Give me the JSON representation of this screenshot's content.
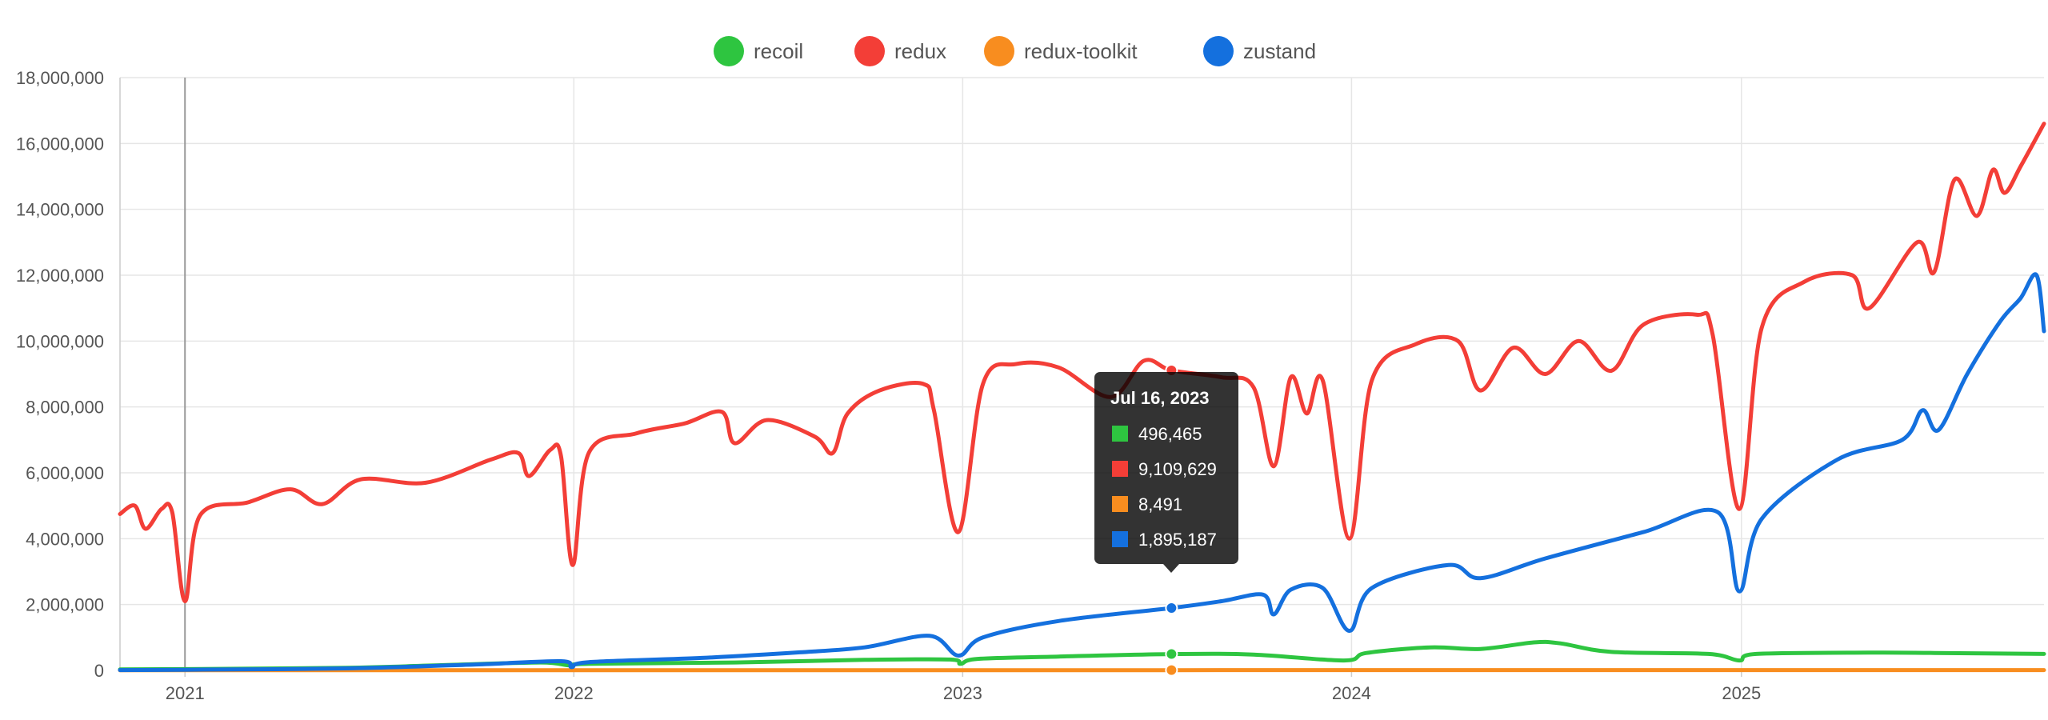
{
  "chart_data": {
    "type": "line",
    "title": "",
    "xlabel": "",
    "ylabel": "",
    "ylim": [
      0,
      18000000
    ],
    "y_ticks": [
      0,
      2000000,
      4000000,
      6000000,
      8000000,
      10000000,
      12000000,
      14000000,
      16000000,
      18000000
    ],
    "y_tick_labels": [
      "0",
      "2,000,000",
      "4,000,000",
      "6,000,000",
      "8,000,000",
      "10,000,000",
      "12,000,000",
      "14,000,000",
      "16,000,000",
      "18,000,000"
    ],
    "xlim": [
      "2020-11-01",
      "2025-10-12"
    ],
    "x_ticks": [
      "2021-01-01",
      "2022-01-01",
      "2023-01-01",
      "2024-01-01",
      "2025-01-01"
    ],
    "x_tick_labels": [
      "2021",
      "2022",
      "2023",
      "2024",
      "2025"
    ],
    "grid": true,
    "legend": "top-center",
    "series": [
      {
        "name": "recoil",
        "color": "#2ec540",
        "points": [
          [
            "2020-11-01",
            30000
          ],
          [
            "2021-01-01",
            40000
          ],
          [
            "2021-06-01",
            80000
          ],
          [
            "2021-09-01",
            160000
          ],
          [
            "2021-12-01",
            240000
          ],
          [
            "2021-12-28",
            150000
          ],
          [
            "2022-01-15",
            200000
          ],
          [
            "2022-06-01",
            240000
          ],
          [
            "2022-10-01",
            320000
          ],
          [
            "2022-12-20",
            330000
          ],
          [
            "2022-12-30",
            200000
          ],
          [
            "2023-01-15",
            350000
          ],
          [
            "2023-04-01",
            420000
          ],
          [
            "2023-07-16",
            496465
          ],
          [
            "2023-10-01",
            480000
          ],
          [
            "2023-12-25",
            300000
          ],
          [
            "2024-01-15",
            530000
          ],
          [
            "2024-03-15",
            700000
          ],
          [
            "2024-05-01",
            650000
          ],
          [
            "2024-06-20",
            850000
          ],
          [
            "2024-07-15",
            820000
          ],
          [
            "2024-09-01",
            560000
          ],
          [
            "2024-12-01",
            500000
          ],
          [
            "2024-12-30",
            300000
          ],
          [
            "2025-01-15",
            500000
          ],
          [
            "2025-05-01",
            540000
          ],
          [
            "2025-07-01",
            530000
          ],
          [
            "2025-10-12",
            500000
          ]
        ]
      },
      {
        "name": "redux",
        "color": "#f33e37",
        "points": [
          [
            "2020-11-01",
            4750000
          ],
          [
            "2020-11-15",
            5000000
          ],
          [
            "2020-11-25",
            4300000
          ],
          [
            "2020-12-10",
            4900000
          ],
          [
            "2020-12-20",
            4800000
          ],
          [
            "2021-01-01",
            2100000
          ],
          [
            "2021-01-15",
            4700000
          ],
          [
            "2021-03-01",
            5100000
          ],
          [
            "2021-04-10",
            5500000
          ],
          [
            "2021-05-10",
            5050000
          ],
          [
            "2021-06-15",
            5800000
          ],
          [
            "2021-08-15",
            5700000
          ],
          [
            "2021-10-15",
            6400000
          ],
          [
            "2021-11-10",
            6600000
          ],
          [
            "2021-11-20",
            5900000
          ],
          [
            "2021-12-10",
            6700000
          ],
          [
            "2021-12-20",
            6500000
          ],
          [
            "2021-12-31",
            3200000
          ],
          [
            "2022-01-15",
            6600000
          ],
          [
            "2022-03-01",
            7200000
          ],
          [
            "2022-04-15",
            7500000
          ],
          [
            "2022-05-20",
            7850000
          ],
          [
            "2022-06-01",
            6900000
          ],
          [
            "2022-07-01",
            7600000
          ],
          [
            "2022-08-15",
            7100000
          ],
          [
            "2022-09-01",
            6600000
          ],
          [
            "2022-09-15",
            7800000
          ],
          [
            "2022-10-15",
            8500000
          ],
          [
            "2022-11-25",
            8700000
          ],
          [
            "2022-12-05",
            7900000
          ],
          [
            "2022-12-28",
            4200000
          ],
          [
            "2023-01-20",
            8700000
          ],
          [
            "2023-02-20",
            9300000
          ],
          [
            "2023-04-01",
            9200000
          ],
          [
            "2023-05-20",
            8300000
          ],
          [
            "2023-06-20",
            9400000
          ],
          [
            "2023-07-16",
            9109629
          ],
          [
            "2023-09-01",
            8900000
          ],
          [
            "2023-10-01",
            8600000
          ],
          [
            "2023-10-20",
            6200000
          ],
          [
            "2023-11-05",
            8900000
          ],
          [
            "2023-11-20",
            7800000
          ],
          [
            "2023-12-05",
            8800000
          ],
          [
            "2023-12-30",
            4000000
          ],
          [
            "2024-01-20",
            8800000
          ],
          [
            "2024-03-01",
            9900000
          ],
          [
            "2024-04-10",
            10000000
          ],
          [
            "2024-05-01",
            8500000
          ],
          [
            "2024-06-01",
            9800000
          ],
          [
            "2024-07-01",
            9000000
          ],
          [
            "2024-08-01",
            10000000
          ],
          [
            "2024-09-01",
            9100000
          ],
          [
            "2024-10-01",
            10500000
          ],
          [
            "2024-11-20",
            10800000
          ],
          [
            "2024-12-05",
            10200000
          ],
          [
            "2024-12-30",
            4900000
          ],
          [
            "2025-01-20",
            10400000
          ],
          [
            "2025-03-01",
            11800000
          ],
          [
            "2025-04-15",
            12000000
          ],
          [
            "2025-05-01",
            11000000
          ],
          [
            "2025-06-15",
            13000000
          ],
          [
            "2025-07-01",
            12100000
          ],
          [
            "2025-07-20",
            14900000
          ],
          [
            "2025-08-10",
            13800000
          ],
          [
            "2025-08-25",
            15200000
          ],
          [
            "2025-09-05",
            14500000
          ],
          [
            "2025-09-20",
            15300000
          ],
          [
            "2025-10-12",
            16600000
          ]
        ]
      },
      {
        "name": "redux-toolkit",
        "color": "#f88d1f",
        "points": [
          [
            "2020-11-01",
            5000
          ],
          [
            "2022-01-01",
            7000
          ],
          [
            "2023-07-16",
            8491
          ],
          [
            "2024-06-01",
            9000
          ],
          [
            "2025-10-12",
            10000
          ]
        ]
      },
      {
        "name": "zustand",
        "color": "#1470de",
        "points": [
          [
            "2020-11-01",
            10000
          ],
          [
            "2021-01-01",
            20000
          ],
          [
            "2021-06-01",
            60000
          ],
          [
            "2021-10-01",
            180000
          ],
          [
            "2021-12-20",
            280000
          ],
          [
            "2021-12-30",
            100000
          ],
          [
            "2022-01-15",
            250000
          ],
          [
            "2022-05-01",
            380000
          ],
          [
            "2022-08-01",
            550000
          ],
          [
            "2022-10-01",
            700000
          ],
          [
            "2022-12-01",
            1050000
          ],
          [
            "2022-12-28",
            450000
          ],
          [
            "2023-01-20",
            1000000
          ],
          [
            "2023-04-01",
            1500000
          ],
          [
            "2023-07-16",
            1895187
          ],
          [
            "2023-09-01",
            2100000
          ],
          [
            "2023-10-10",
            2300000
          ],
          [
            "2023-10-20",
            1700000
          ],
          [
            "2023-11-05",
            2450000
          ],
          [
            "2023-12-05",
            2500000
          ],
          [
            "2023-12-30",
            1200000
          ],
          [
            "2024-01-20",
            2500000
          ],
          [
            "2024-04-01",
            3200000
          ],
          [
            "2024-05-01",
            2800000
          ],
          [
            "2024-07-01",
            3400000
          ],
          [
            "2024-10-01",
            4200000
          ],
          [
            "2024-12-10",
            4800000
          ],
          [
            "2024-12-30",
            2400000
          ],
          [
            "2025-01-20",
            4600000
          ],
          [
            "2025-04-01",
            6400000
          ],
          [
            "2025-06-01",
            7000000
          ],
          [
            "2025-06-20",
            7900000
          ],
          [
            "2025-07-05",
            7300000
          ],
          [
            "2025-08-01",
            9000000
          ],
          [
            "2025-09-01",
            10600000
          ],
          [
            "2025-09-20",
            11300000
          ],
          [
            "2025-10-05",
            12000000
          ],
          [
            "2025-10-12",
            10300000
          ]
        ]
      }
    ],
    "tooltip": {
      "date": "2023-07-16",
      "title": "Jul 16, 2023",
      "rows": [
        {
          "series": "recoil",
          "value": "496,465"
        },
        {
          "series": "redux",
          "value": "9,109,629"
        },
        {
          "series": "redux-toolkit",
          "value": "8,491"
        },
        {
          "series": "zustand",
          "value": "1,895,187"
        }
      ]
    }
  }
}
